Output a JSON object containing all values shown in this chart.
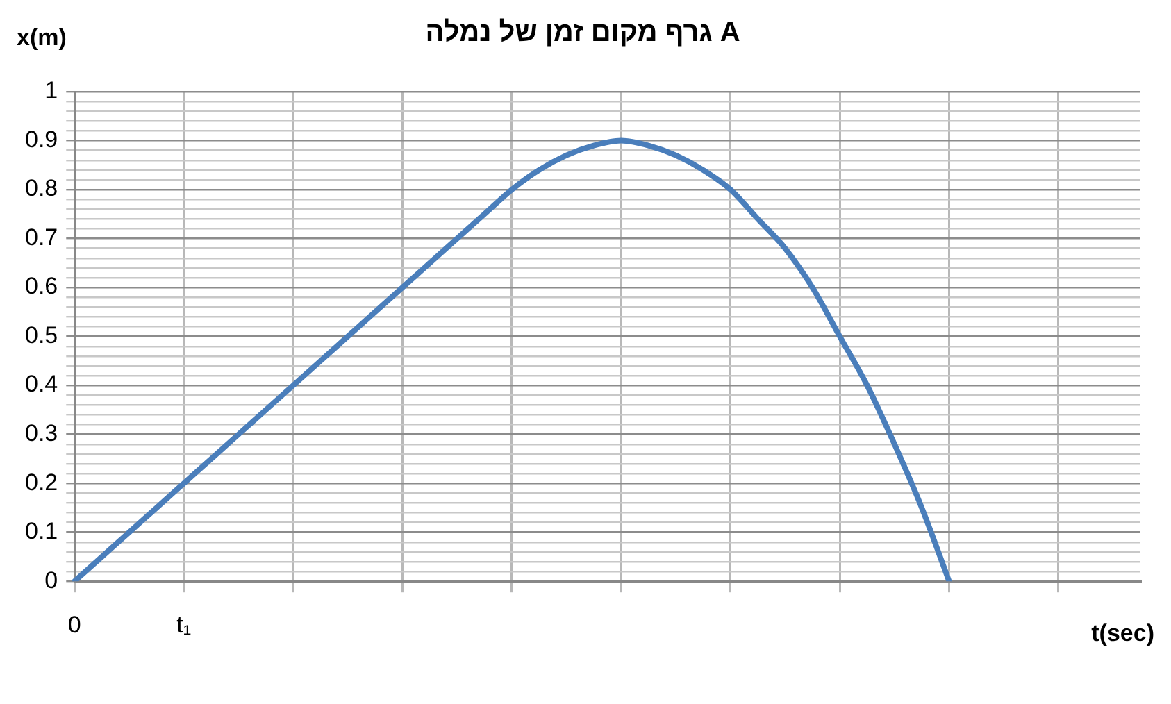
{
  "chart_data": {
    "type": "line",
    "title": "גרף מקום זמן של נמלה A",
    "xlabel": "t(sec)",
    "ylabel": "x(m)",
    "categories": [
      "0",
      null,
      null,
      null,
      "t₁",
      null,
      null,
      null,
      null,
      null,
      null,
      null,
      null,
      null,
      null,
      null,
      null,
      null,
      null,
      null,
      null,
      null,
      null,
      null,
      null,
      null,
      null,
      null,
      null,
      null,
      null,
      null,
      null,
      null,
      null,
      null,
      null,
      null,
      null,
      null
    ],
    "series": [
      {
        "color": "#4a7ebb",
        "values": [
          0,
          0.05,
          0.1,
          0.15,
          0.2,
          0.25,
          0.3,
          0.35,
          0.4,
          0.45,
          0.5,
          0.55,
          0.6,
          0.65,
          0.7,
          0.75,
          0.8,
          0.84,
          0.87,
          0.89,
          0.9,
          0.89,
          0.87,
          0.84,
          0.8,
          0.74,
          0.68,
          0.6,
          0.5,
          0.4,
          0.28,
          0.15,
          0,
          null,
          null,
          null,
          null,
          null,
          null,
          null
        ]
      }
    ],
    "ylim": [
      0,
      1
    ],
    "yticks": [
      0,
      {
        "value": 0.02,
        "label": null
      },
      {
        "value": 0.04,
        "label": null
      },
      {
        "value": 0.06,
        "label": null
      },
      {
        "value": 0.08,
        "label": null
      },
      0.1,
      {
        "value": 0.12,
        "label": null
      },
      {
        "value": 0.14,
        "label": null
      },
      {
        "value": 0.16,
        "label": null
      },
      {
        "value": 0.18,
        "label": null
      },
      0.2,
      {
        "value": 0.22,
        "label": null
      },
      {
        "value": 0.24,
        "label": null
      },
      {
        "value": 0.26,
        "label": null
      },
      {
        "value": 0.28,
        "label": null
      },
      0.3,
      {
        "value": 0.32,
        "label": null
      },
      {
        "value": 0.34,
        "label": null
      },
      {
        "value": 0.36,
        "label": null
      },
      {
        "value": 0.38,
        "label": null
      },
      0.4,
      {
        "value": 0.42,
        "label": null
      },
      {
        "value": 0.44,
        "label": null
      },
      {
        "value": 0.46,
        "label": null
      },
      {
        "value": 0.48,
        "label": null
      },
      0.5,
      {
        "value": 0.52,
        "label": null
      },
      {
        "value": 0.54,
        "label": null
      },
      {
        "value": 0.56,
        "label": null
      },
      {
        "value": 0.58,
        "label": null
      },
      0.6,
      {
        "value": 0.62,
        "label": null
      },
      {
        "value": 0.64,
        "label": null
      },
      {
        "value": 0.66,
        "label": null
      },
      {
        "value": 0.68,
        "label": null
      },
      0.7,
      {
        "value": 0.72,
        "label": null
      },
      {
        "value": 0.74,
        "label": null
      },
      {
        "value": 0.76,
        "label": null
      },
      {
        "value": 0.78,
        "label": null
      },
      0.8,
      {
        "value": 0.82,
        "label": null
      },
      {
        "value": 0.84,
        "label": null
      },
      {
        "value": 0.86,
        "label": null
      },
      {
        "value": 0.88,
        "label": null
      },
      0.9,
      {
        "value": 0.92,
        "label": null
      },
      {
        "value": 0.94,
        "label": null
      },
      {
        "value": 0.96,
        "label": null
      },
      {
        "value": 0.98,
        "label": null
      },
      1
    ],
    "grid": true,
    "legend": false,
    "marker": "none",
    "line_style": "solid"
  }
}
